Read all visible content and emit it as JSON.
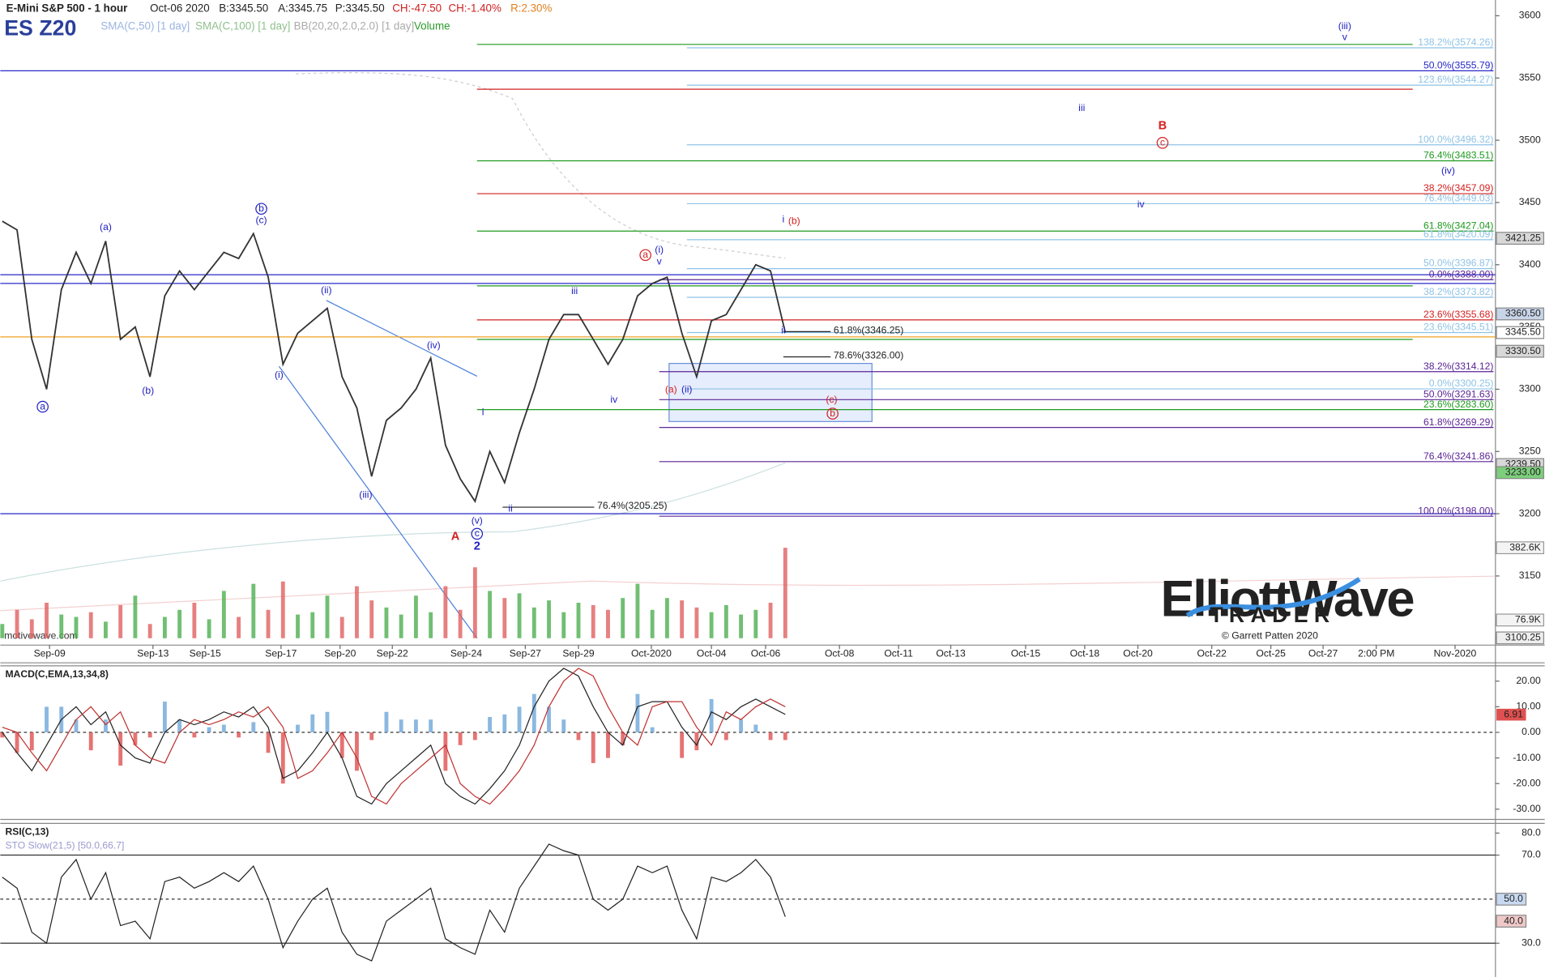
{
  "header": {
    "title": "E-Mini S&P 500 - 1 hour",
    "date": "Oct-06 2020",
    "bid": "B:3345.50",
    "ask": "A:3345.75",
    "price": "P:3345.50",
    "change": "CH:-47.50",
    "change_pct": "CH:-1.40%",
    "range": "R:2.30%",
    "symbol": "ES Z20",
    "studies": [
      "SMA(C,50) [1 day]",
      "SMA(C,100) [1 day]",
      "BB(20,20,2.0,2.0) [1 day]",
      "Volume"
    ]
  },
  "watermark": "motivewave.com",
  "logo": {
    "name": "ElliottWave",
    "sub": "TRADER",
    "copyright": "© Garrett Patten 2020"
  },
  "chart_data": [
    {
      "type": "line",
      "color": "#333333",
      "values": [
        3435,
        3428,
        3340,
        3300,
        3380,
        3410,
        3385,
        3419,
        3340,
        3350,
        3310,
        3375,
        3395,
        3380,
        3395,
        3410,
        3405,
        3425,
        3390,
        3320,
        3345,
        3355,
        3365,
        3310,
        3285,
        3230,
        3275,
        3285,
        3300,
        3325,
        3255,
        3228,
        3210,
        3250,
        3225,
        3265,
        3300,
        3340,
        3360,
        3360,
        3340,
        3320,
        3340,
        3375,
        3385,
        3390,
        3345,
        3310,
        3355,
        3360,
        3380,
        3400,
        3395,
        3345.5
      ],
      "ylim": [
        3094.46,
        3612.66
      ],
      "yticks": [
        3100,
        3150,
        3200,
        3250,
        3300,
        3350,
        3400,
        3450,
        3500,
        3550,
        3600
      ],
      "date_labels": [
        "Sep-09",
        "Sep-13",
        "Sep-15",
        "Sep-17",
        "Sep-20",
        "Sep-22",
        "Sep-24",
        "Sep-27",
        "Sep-29",
        "Oct-2020",
        "Oct-04",
        "Oct-06",
        "Oct-08",
        "Oct-11",
        "Oct-13",
        "Oct-15",
        "Oct-18",
        "Oct-20",
        "Oct-22",
        "Oct-25",
        "Oct-27",
        "2:00 PM",
        "Nov-2020"
      ],
      "price_labels": [
        {
          "value": 3421.25,
          "label": "3421.25",
          "color": "#d8d8d8"
        },
        {
          "value": 3360.5,
          "label": "3360.50",
          "color": "#c8d4e8"
        },
        {
          "value": 3345.5,
          "label": "3345.50",
          "color": "#ffffff"
        },
        {
          "value": 3330.5,
          "label": "3330.50",
          "color": "#d8d8d8"
        },
        {
          "value": 3239.5,
          "label": "3239.50",
          "color": "#d8d8d8"
        },
        {
          "value": 3233,
          "label": "3233.00",
          "color": "#7ccf7c"
        },
        {
          "value": 3100.25,
          "label": "3100.25",
          "color": "#eeeeee"
        }
      ],
      "volume": {
        "ylim": [
          0,
          450
        ],
        "up_color": "#4caf50",
        "down_color": "#e06060",
        "values": [
          60,
          120,
          80,
          150,
          100,
          90,
          110,
          70,
          140,
          180,
          60,
          90,
          120,
          150,
          80,
          200,
          90,
          230,
          120,
          240,
          100,
          110,
          180,
          90,
          220,
          160,
          130,
          100,
          180,
          110,
          220,
          120,
          300,
          200,
          170,
          190,
          130,
          160,
          110,
          150,
          140,
          120,
          170,
          230,
          120,
          170,
          160,
          130,
          110,
          140,
          100,
          120,
          150,
          382.6
        ],
        "labels": [
          {
            "value": 382.6,
            "label": "382.6K"
          },
          {
            "value": 76.9,
            "label": "76.9K"
          }
        ]
      },
      "levels": [
        {
          "label": null,
          "value": 3577,
          "color": "#1f9a1f"
        },
        {
          "label": "138.2%(3574.26)",
          "value": 3574.26,
          "color": "#8fc3e6"
        },
        {
          "label": "50.0%(3555.79)",
          "value": 3555.79,
          "color": "#2828c8"
        },
        {
          "label": "123.6%(3544.27)",
          "value": 3544.27,
          "color": "#8fc3e6"
        },
        {
          "label": null,
          "value": 3541,
          "color": "#d42020"
        },
        {
          "label": "100.0%(3496.32)",
          "value": 3496.32,
          "color": "#8fc3e6"
        },
        {
          "label": "76.4%(3483.51)",
          "value": 3483.51,
          "color": "#1f9a1f"
        },
        {
          "label": "38.2%(3457.09)",
          "value": 3457.09,
          "color": "#d42020"
        },
        {
          "label": "76.4%(3449.03)",
          "value": 3449.03,
          "color": "#8fc3e6"
        },
        {
          "label": "61.8%(3427.04)",
          "value": 3427.04,
          "color": "#1f9a1f"
        },
        {
          "label": "61.8%(3420.09)",
          "value": 3420.09,
          "color": "#8fc3e6"
        },
        {
          "label": "50.0%(3396.87)",
          "value": 3396.87,
          "color": "#8fc3e6"
        },
        {
          "label": "0.0%(3388.00)",
          "value": 3388.0,
          "color": "#5b2596"
        },
        {
          "label": null,
          "value": 3383,
          "color": "#1f9a1f"
        },
        {
          "label": "38.2%(3373.82)",
          "value": 3373.82,
          "color": "#8fc3e6"
        },
        {
          "label": "23.6%(3355.68)",
          "value": 3355.68,
          "color": "#d42020"
        },
        {
          "label": "23.6%(3345.51)",
          "value": 3345.51,
          "color": "#8fc3e6"
        },
        {
          "label": null,
          "value": 3340,
          "color": "#1f9a1f"
        },
        {
          "label": "38.2%(3314.12)",
          "value": 3314.12,
          "color": "#5b2596"
        },
        {
          "label": "0.0%(3300.25)",
          "value": 3300.25,
          "color": "#8fc3e6"
        },
        {
          "label": "50.0%(3291.63)",
          "value": 3291.63,
          "color": "#5b2596"
        },
        {
          "label": "23.6%(3283.60)",
          "value": 3283.6,
          "color": "#1f9a1f"
        },
        {
          "label": "61.8%(3269.29)",
          "value": 3269.29,
          "color": "#5b2596"
        },
        {
          "label": "76.4%(3241.86)",
          "value": 3241.86,
          "color": "#5b2596"
        },
        {
          "label": "100.0%(3198.00)",
          "value": 3198.0,
          "color": "#5b2596"
        }
      ],
      "hlines": [
        {
          "value": 3392,
          "color": "#2828c8"
        },
        {
          "value": 3385,
          "color": "#2828c8"
        },
        {
          "value": 3342,
          "color": "#f0a020"
        },
        {
          "value": 3200,
          "color": "#2828c8"
        }
      ],
      "retracements": [
        {
          "label": "61.8%(3346.25)",
          "value": 3346.25
        },
        {
          "label": "78.6%(3326.00)",
          "value": 3326.0
        },
        {
          "label": "76.4%(3205.25)",
          "value": 3205.25
        }
      ],
      "wave_labels": [
        {
          "text": "a",
          "color": "#2020c0",
          "circled": true
        },
        {
          "text": "(a)",
          "color": "#2020c0"
        },
        {
          "text": "(b)",
          "color": "#2020c0"
        },
        {
          "text": "b",
          "color": "#2020c0",
          "circled": true
        },
        {
          "text": "(c)",
          "color": "#2020c0"
        },
        {
          "text": "(i)",
          "color": "#2020c0"
        },
        {
          "text": "(ii)",
          "color": "#2020c0"
        },
        {
          "text": "(iii)",
          "color": "#2020c0"
        },
        {
          "text": "(iv)",
          "color": "#2020c0"
        },
        {
          "text": "(v)",
          "color": "#2020c0"
        },
        {
          "text": "c",
          "color": "#2020c0",
          "circled": true
        },
        {
          "text": "2",
          "color": "#2020c0",
          "bold": true
        },
        {
          "text": "A",
          "color": "#d42020",
          "bold": true
        },
        {
          "text": "i",
          "color": "#2020c0"
        },
        {
          "text": "ii",
          "color": "#2020c0"
        },
        {
          "text": "iii",
          "color": "#2020c0"
        },
        {
          "text": "iv",
          "color": "#2020c0"
        },
        {
          "text": "a",
          "color": "#d42020",
          "circled": true
        },
        {
          "text": "(i)",
          "color": "#2020c0"
        },
        {
          "text": "v",
          "color": "#2020c0"
        },
        {
          "text": "(a)",
          "color": "#d42020"
        },
        {
          "text": "(ii)",
          "color": "#2020c0"
        },
        {
          "text": "i",
          "color": "#2020c0"
        },
        {
          "text": "ii",
          "color": "#2020c0"
        },
        {
          "text": "(b)",
          "color": "#d42020"
        },
        {
          "text": "(c)",
          "color": "#d42020"
        },
        {
          "text": "b",
          "color": "#d42020",
          "circled": true
        },
        {
          "text": "iii",
          "color": "#2020c0"
        },
        {
          "text": "B",
          "color": "#d42020",
          "bold": true
        },
        {
          "text": "c",
          "color": "#d42020",
          "circled": true
        },
        {
          "text": "iv",
          "color": "#2020c0"
        },
        {
          "text": "(iv)",
          "color": "#2020c0"
        },
        {
          "text": "(iii)",
          "color": "#2020c0"
        },
        {
          "text": "v",
          "color": "#2020c0"
        }
      ]
    },
    {
      "type": "line",
      "title": "MACD(C,EMA,13,34,8)",
      "series": [
        {
          "color": "#222222",
          "values": [
            0,
            -8,
            -15,
            -5,
            5,
            10,
            3,
            8,
            -5,
            -10,
            -12,
            0,
            5,
            3,
            5,
            8,
            6,
            10,
            2,
            -18,
            -15,
            -8,
            0,
            -10,
            -25,
            -28,
            -20,
            -15,
            -10,
            -5,
            -20,
            -25,
            -28,
            -22,
            -15,
            -5,
            10,
            20,
            25,
            22,
            10,
            0,
            -5,
            10,
            12,
            12,
            2,
            -5,
            8,
            5,
            10,
            13,
            10,
            7
          ]
        },
        {
          "color": "#c03030",
          "values": [
            2,
            0,
            -8,
            -15,
            -5,
            5,
            10,
            3,
            8,
            -5,
            -10,
            -12,
            0,
            5,
            3,
            5,
            8,
            6,
            10,
            2,
            -18,
            -15,
            -8,
            0,
            -10,
            -25,
            -28,
            -20,
            -15,
            -10,
            -5,
            -20,
            -25,
            -28,
            -22,
            -15,
            -5,
            10,
            20,
            25,
            22,
            10,
            0,
            -5,
            10,
            12,
            12,
            2,
            -5,
            8,
            5,
            10,
            13,
            10
          ]
        }
      ],
      "histogram": {
        "up_color": "#6ea6d8",
        "down_color": "#e05050",
        "values": [
          -2,
          -8,
          -7,
          10,
          10,
          5,
          -7,
          5,
          -13,
          -5,
          -2,
          12,
          5,
          -2,
          2,
          3,
          -2,
          4,
          -8,
          -20,
          3,
          7,
          8,
          -10,
          -15,
          -3,
          8,
          5,
          5,
          5,
          -15,
          -5,
          -3,
          6,
          7,
          10,
          15,
          10,
          5,
          -3,
          -12,
          -10,
          -5,
          15,
          2,
          0,
          -10,
          -7,
          13,
          -3,
          5,
          3,
          -3,
          -3
        ]
      },
      "ylim": [
        -34,
        26
      ],
      "yticks": [
        {
          "value": 20,
          "label": "20.00"
        },
        {
          "value": 10,
          "label": "10.00"
        },
        {
          "value": 0,
          "label": "0.00"
        },
        {
          "value": -10,
          "label": "-10.00"
        },
        {
          "value": -20,
          "label": "-20.00"
        },
        {
          "value": -30,
          "label": "-30.00"
        }
      ],
      "zero_line": 0,
      "last_label": {
        "value": 6.91,
        "color": "#e05050"
      }
    },
    {
      "type": "line",
      "title": "RSI(C,13)",
      "subtitle": "STO Slow(21,5) [50.0,66.7]",
      "color": "#222222",
      "values": [
        60,
        55,
        35,
        30,
        60,
        68,
        50,
        62,
        38,
        40,
        32,
        58,
        60,
        55,
        58,
        62,
        58,
        65,
        50,
        28,
        40,
        50,
        55,
        35,
        25,
        22,
        40,
        45,
        50,
        55,
        32,
        28,
        25,
        45,
        35,
        55,
        65,
        75,
        72,
        70,
        50,
        45,
        50,
        65,
        62,
        65,
        45,
        32,
        60,
        58,
        62,
        68,
        60,
        42
      ],
      "ylim": [
        14.65,
        84.42
      ],
      "yticks": [
        {
          "value": 80,
          "label": "80.0"
        },
        {
          "value": 70,
          "label": "70.0"
        },
        {
          "value": 30,
          "label": "30.0"
        }
      ],
      "bands": [
        70,
        30
      ],
      "mid_line": 50,
      "markers": [
        {
          "value": 50,
          "label": "50.0",
          "color": "#c8d8f0"
        },
        {
          "value": 40,
          "label": "40.0",
          "color": "#f0c8c8"
        }
      ]
    }
  ]
}
